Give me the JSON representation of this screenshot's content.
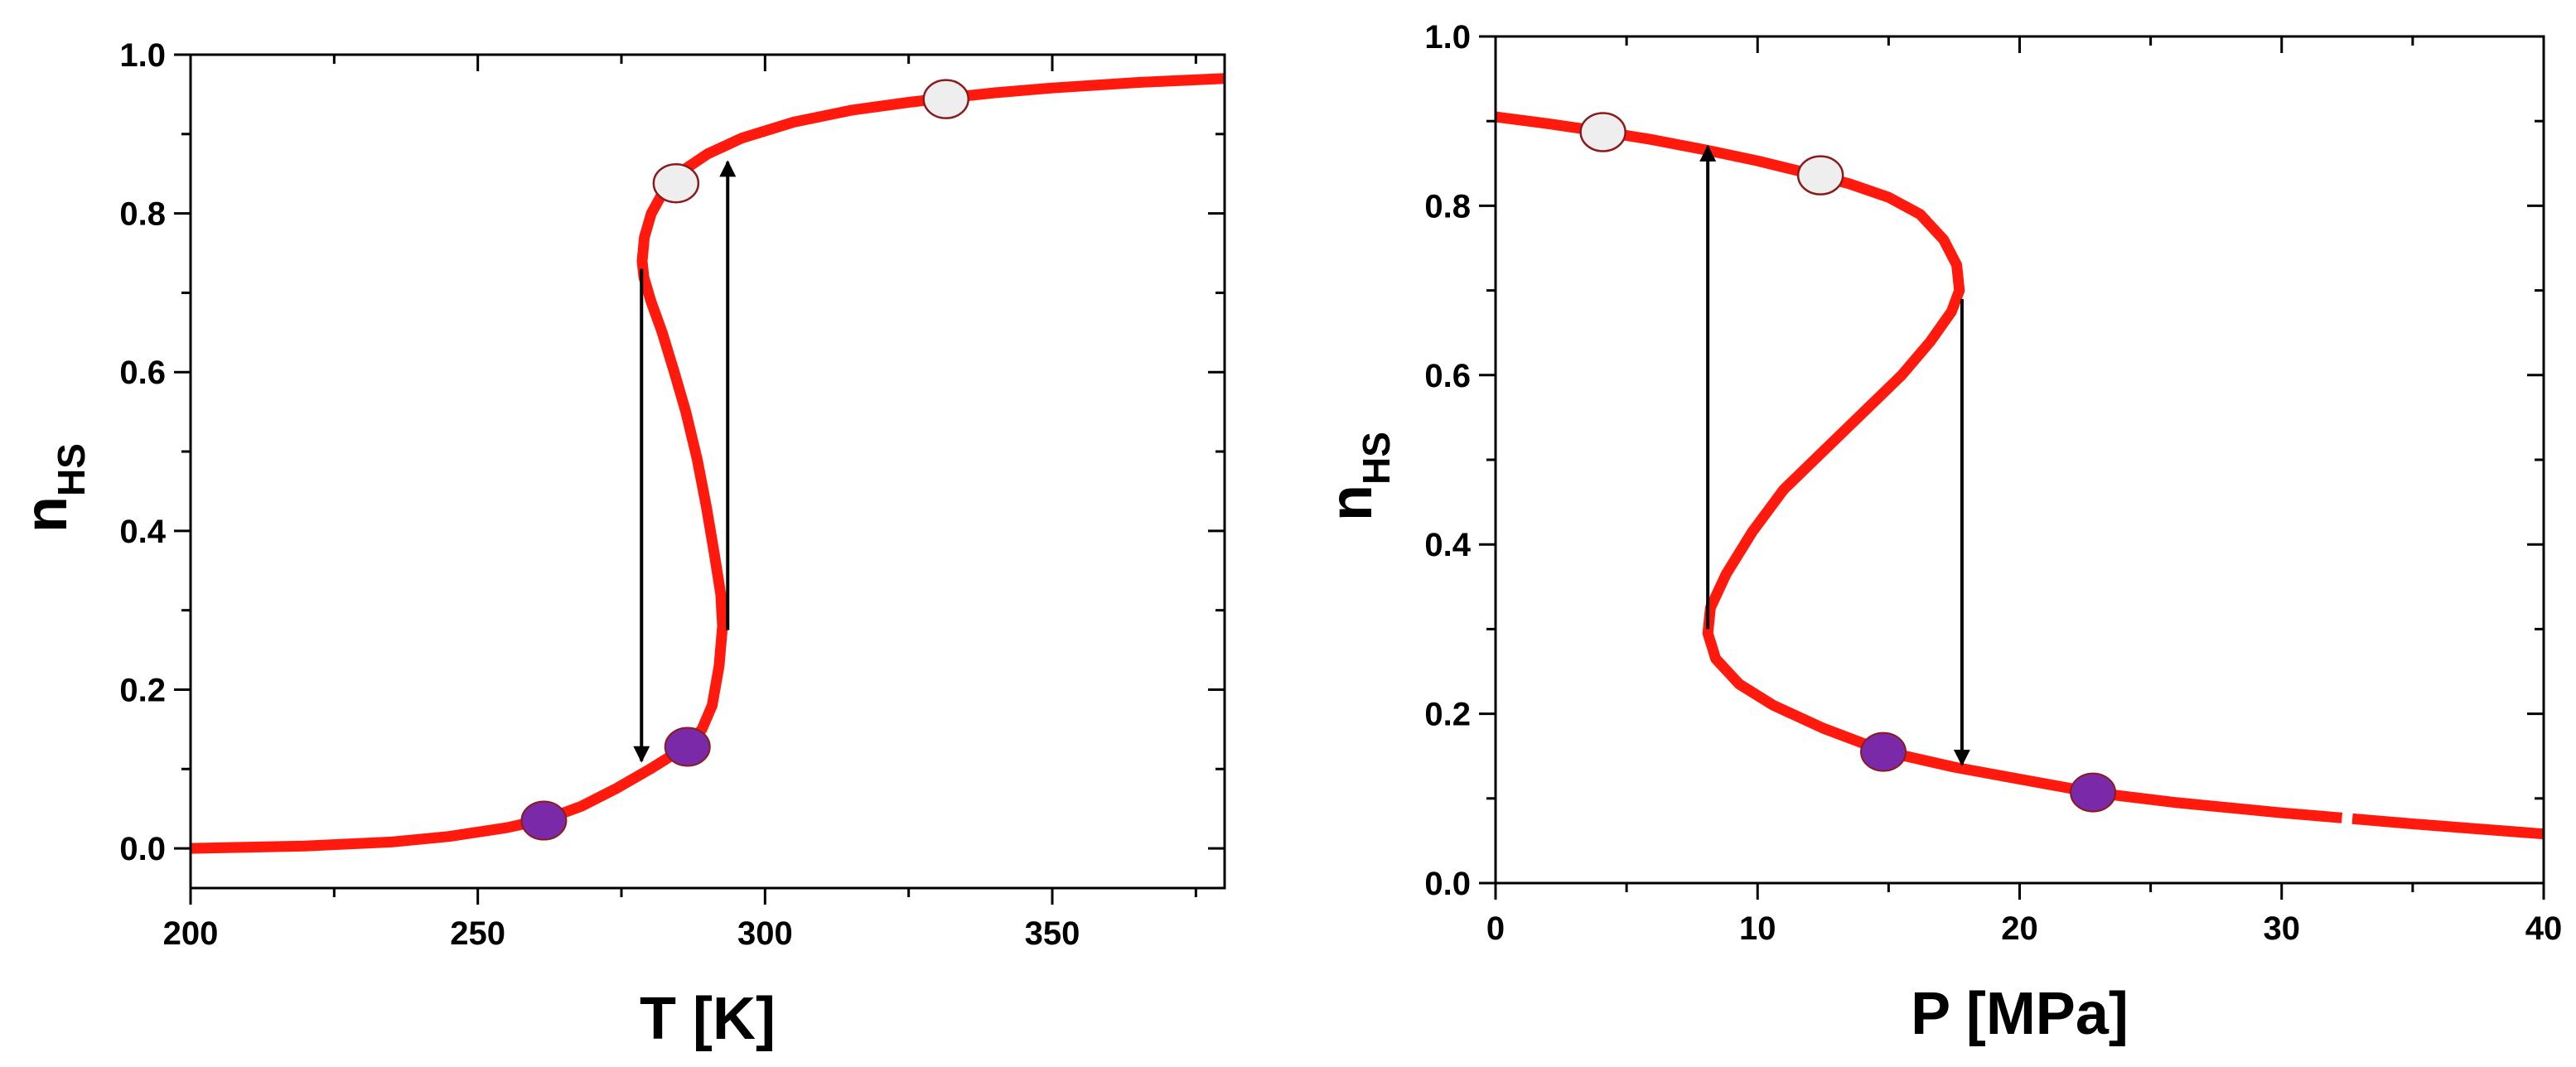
{
  "colors": {
    "curve": "#ff1a0d",
    "low_spin_marker": "#7a2aa8",
    "high_spin_marker": "#eeeeee",
    "marker_edge": "#8b1a1a",
    "axis": "#000000",
    "arrow": "#000000"
  },
  "chart_data": [
    {
      "type": "line",
      "title": "",
      "xlabel": "T [K]",
      "ylabel_main": "n",
      "ylabel_sub": "HS",
      "xlim": [
        200,
        380
      ],
      "ylim": [
        -0.05,
        1.0
      ],
      "xticks": [
        200,
        250,
        300,
        350
      ],
      "yticks": [
        0.0,
        0.2,
        0.4,
        0.6,
        0.8,
        1.0
      ],
      "xtick_labels": [
        "200",
        "250",
        "300",
        "350"
      ],
      "ytick_labels": [
        "0.0",
        "0.2",
        "0.4",
        "0.6",
        "0.8",
        "1.0"
      ],
      "grid": false,
      "series": [
        {
          "points": [
            [
              200,
              0.0
            ],
            [
              220,
              0.003
            ],
            [
              235,
              0.008
            ],
            [
              245,
              0.015
            ],
            [
              255,
              0.026
            ],
            [
              262,
              0.037
            ],
            [
              268,
              0.053
            ],
            [
              274,
              0.075
            ],
            [
              280,
              0.1
            ],
            [
              284,
              0.118
            ],
            [
              286.5,
              0.13
            ],
            [
              289,
              0.15
            ],
            [
              290.8,
              0.18
            ],
            [
              292,
              0.23
            ],
            [
              292.6,
              0.28
            ],
            [
              292.3,
              0.32
            ],
            [
              291.2,
              0.37
            ],
            [
              289.8,
              0.43
            ],
            [
              288.2,
              0.49
            ],
            [
              286.2,
              0.55
            ],
            [
              284.2,
              0.6
            ],
            [
              282.1,
              0.65
            ],
            [
              280.1,
              0.69
            ],
            [
              278.9,
              0.72
            ],
            [
              278.6,
              0.74
            ],
            [
              279,
              0.77
            ],
            [
              280.2,
              0.8
            ],
            [
              282.5,
              0.83
            ],
            [
              285.5,
              0.853
            ],
            [
              290,
              0.875
            ],
            [
              296,
              0.895
            ],
            [
              305,
              0.915
            ],
            [
              315,
              0.93
            ],
            [
              325,
              0.94
            ],
            [
              331,
              0.945
            ],
            [
              340,
              0.952
            ],
            [
              350,
              0.958
            ],
            [
              365,
              0.965
            ],
            [
              380,
              0.97
            ]
          ]
        }
      ],
      "low_spin_markers": [
        [
          261.5,
          0.035
        ],
        [
          286.5,
          0.128
        ]
      ],
      "high_spin_markers": [
        [
          284.5,
          0.838
        ],
        [
          331.5,
          0.944
        ]
      ],
      "arrows": [
        {
          "direction": "down",
          "x": 278.5,
          "from": 0.73,
          "to": 0.11
        },
        {
          "direction": "up",
          "x": 293.5,
          "from": 0.275,
          "to": 0.865
        }
      ]
    },
    {
      "type": "line",
      "title": "",
      "xlabel": "P [MPa]",
      "ylabel_main": "n",
      "ylabel_sub": "HS",
      "xlim": [
        0,
        40
      ],
      "ylim": [
        0.0,
        1.0
      ],
      "xticks": [
        0,
        10,
        20,
        30,
        40
      ],
      "yticks": [
        0.0,
        0.2,
        0.4,
        0.6,
        0.8,
        1.0
      ],
      "xtick_labels": [
        "0",
        "10",
        "20",
        "30",
        "40"
      ],
      "ytick_labels": [
        "0.0",
        "0.2",
        "0.4",
        "0.6",
        "0.8",
        "1.0"
      ],
      "grid": false,
      "series": [
        {
          "points": [
            [
              0,
              0.905
            ],
            [
              2,
              0.897
            ],
            [
              4,
              0.888
            ],
            [
              6,
              0.878
            ],
            [
              8,
              0.866
            ],
            [
              10,
              0.853
            ],
            [
              12,
              0.838
            ],
            [
              13.5,
              0.826
            ],
            [
              15,
              0.81
            ],
            [
              16.2,
              0.79
            ],
            [
              17.1,
              0.76
            ],
            [
              17.6,
              0.73
            ],
            [
              17.7,
              0.7
            ],
            [
              17.4,
              0.675
            ],
            [
              16.6,
              0.64
            ],
            [
              15.5,
              0.6
            ],
            [
              14,
              0.555
            ],
            [
              12.5,
              0.51
            ],
            [
              11,
              0.465
            ],
            [
              9.8,
              0.415
            ],
            [
              8.8,
              0.365
            ],
            [
              8.2,
              0.325
            ],
            [
              8.1,
              0.295
            ],
            [
              8.4,
              0.265
            ],
            [
              9.3,
              0.235
            ],
            [
              10.6,
              0.21
            ],
            [
              12.5,
              0.183
            ],
            [
              14.8,
              0.156
            ],
            [
              17.5,
              0.137
            ],
            [
              20.5,
              0.12
            ],
            [
              22.8,
              0.107
            ],
            [
              26,
              0.095
            ],
            [
              30,
              0.083
            ],
            [
              32.3,
              0.077
            ]
          ]
        },
        {
          "points": [
            [
              32.7,
              0.076
            ],
            [
              35,
              0.07
            ],
            [
              37.5,
              0.064
            ],
            [
              40,
              0.058
            ]
          ]
        }
      ],
      "low_spin_markers": [
        [
          14.8,
          0.155
        ],
        [
          22.8,
          0.107
        ]
      ],
      "high_spin_markers": [
        [
          4.1,
          0.887
        ],
        [
          12.4,
          0.836
        ]
      ],
      "arrows": [
        {
          "direction": "up",
          "x": 8.1,
          "from": 0.3,
          "to": 0.87
        },
        {
          "direction": "down",
          "x": 17.8,
          "from": 0.69,
          "to": 0.14
        }
      ]
    }
  ]
}
